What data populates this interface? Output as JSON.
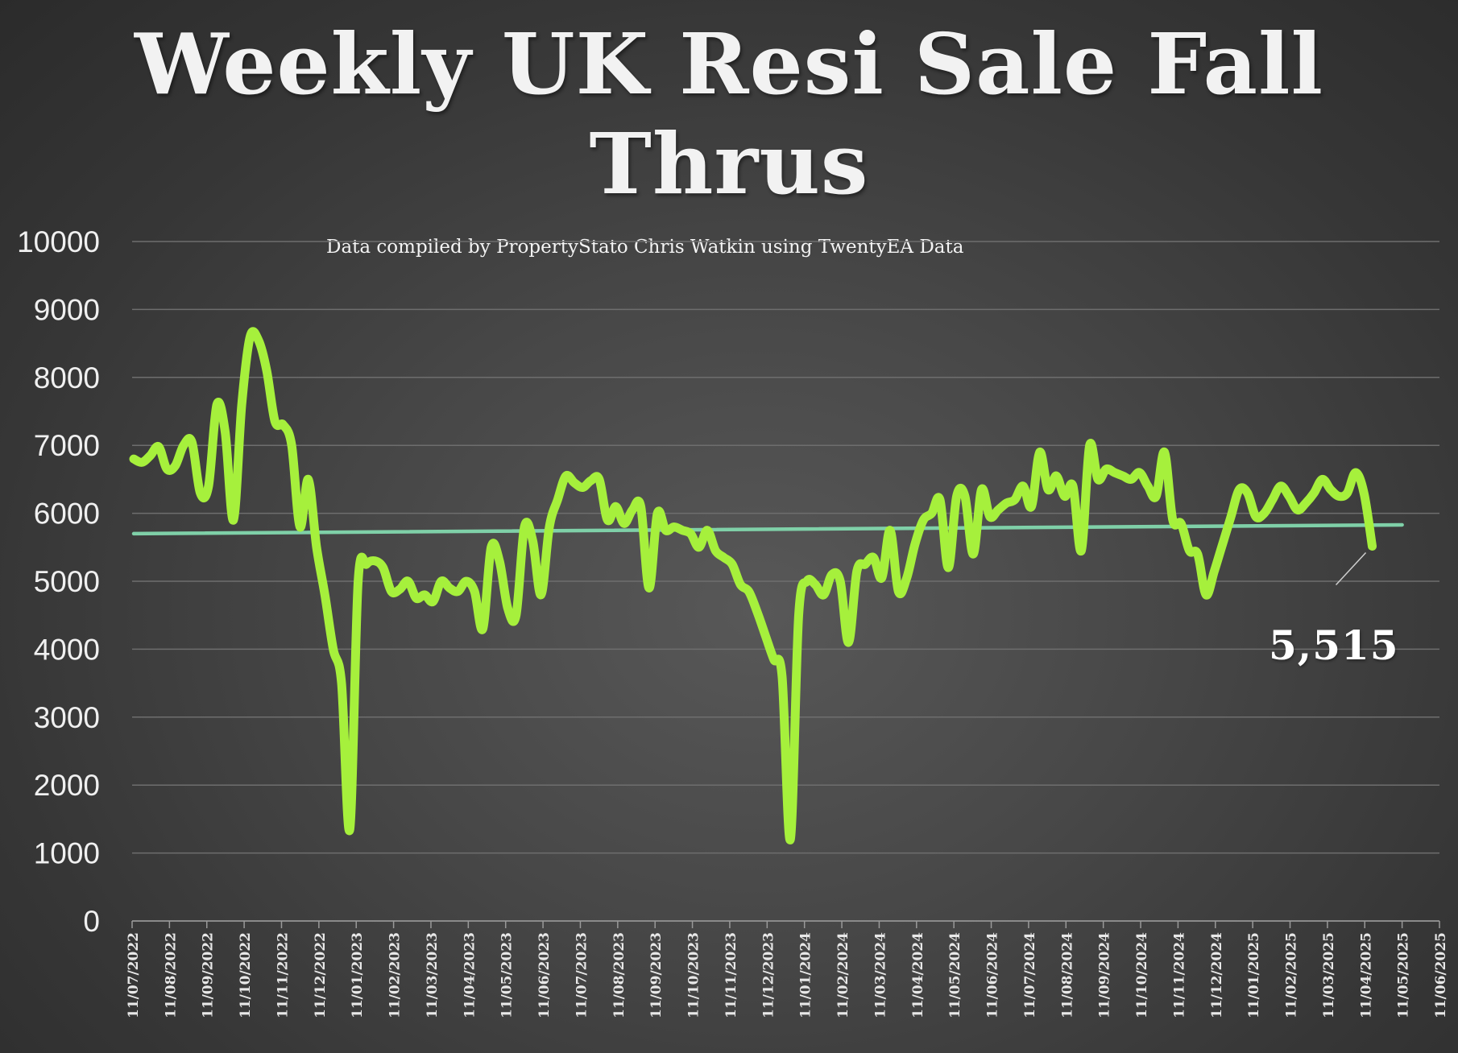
{
  "chart_data": {
    "type": "line",
    "title_lines": [
      "Weekly UK Resi Sale Fall",
      "Thrus"
    ],
    "subtitle": "Data compiled by PropertyStato Chris Watkin using TwentyEA Data",
    "xlabel": "",
    "ylabel": "",
    "ylim": [
      0,
      10000
    ],
    "yticks": [
      "0",
      "1000",
      "2000",
      "3000",
      "4000",
      "5000",
      "6000",
      "7000",
      "8000",
      "9000",
      "10000"
    ],
    "xticks": [
      "11/07/2022",
      "11/08/2022",
      "11/09/2022",
      "11/10/2022",
      "11/11/2022",
      "11/12/2022",
      "11/01/2023",
      "11/02/2023",
      "11/03/2023",
      "11/04/2023",
      "11/05/2023",
      "11/06/2023",
      "11/07/2023",
      "11/08/2023",
      "11/09/2023",
      "11/10/2023",
      "11/11/2023",
      "11/12/2023",
      "11/01/2024",
      "11/02/2024",
      "11/03/2024",
      "11/04/2024",
      "11/05/2024",
      "11/06/2024",
      "11/07/2024",
      "11/08/2024",
      "11/09/2024",
      "11/10/2024",
      "11/11/2024",
      "11/12/2024",
      "11/01/2025",
      "11/02/2025",
      "11/03/2025",
      "11/04/2025",
      "11/05/2025",
      "11/06/2025"
    ],
    "grid": true,
    "legend": "none",
    "series": [
      {
        "role": "weekly-fall-thrus",
        "color": "#a6f03c",
        "values": [
          6800,
          6750,
          6850,
          6980,
          6650,
          6700,
          7000,
          7050,
          6300,
          6400,
          7600,
          7200,
          5900,
          7600,
          8600,
          8550,
          8100,
          7350,
          7300,
          7000,
          5800,
          6500,
          5500,
          4800,
          4000,
          3500,
          1350,
          5000,
          5250,
          5300,
          5200,
          4850,
          4880,
          5000,
          4750,
          4800,
          4700,
          5000,
          4900,
          4850,
          5000,
          4850,
          4300,
          5500,
          5300,
          4600,
          4500,
          5800,
          5600,
          4800,
          5800,
          6200,
          6550,
          6450,
          6380,
          6480,
          6500,
          5900,
          6100,
          5850,
          6050,
          6100,
          4900,
          6000,
          5750,
          5800,
          5750,
          5700,
          5500,
          5750,
          5450,
          5350,
          5250,
          4950,
          4850,
          4550,
          4200,
          3850,
          3600,
          1200,
          4500,
          5000,
          4950,
          4800,
          5100,
          5000,
          4100,
          5150,
          5250,
          5350,
          5050,
          5750,
          4850,
          5050,
          5550,
          5900,
          6000,
          6200,
          5200,
          6250,
          6250,
          5400,
          6350,
          5950,
          6050,
          6150,
          6200,
          6400,
          6100,
          6900,
          6350,
          6550,
          6250,
          6400,
          5450,
          7000,
          6500,
          6650,
          6600,
          6550,
          6500,
          6600,
          6400,
          6250,
          6900,
          5900,
          5850,
          5450,
          5400,
          4800,
          5150,
          5550,
          5950,
          6350,
          6300,
          5950,
          6000,
          6200,
          6400,
          6250,
          6050,
          6150,
          6300,
          6500,
          6350,
          6250,
          6300,
          6600,
          6300,
          5515
        ]
      },
      {
        "role": "trend",
        "color": "#7fd0a8",
        "values_start_end": [
          5700,
          5830
        ]
      }
    ],
    "last_value_label": "5,515"
  }
}
